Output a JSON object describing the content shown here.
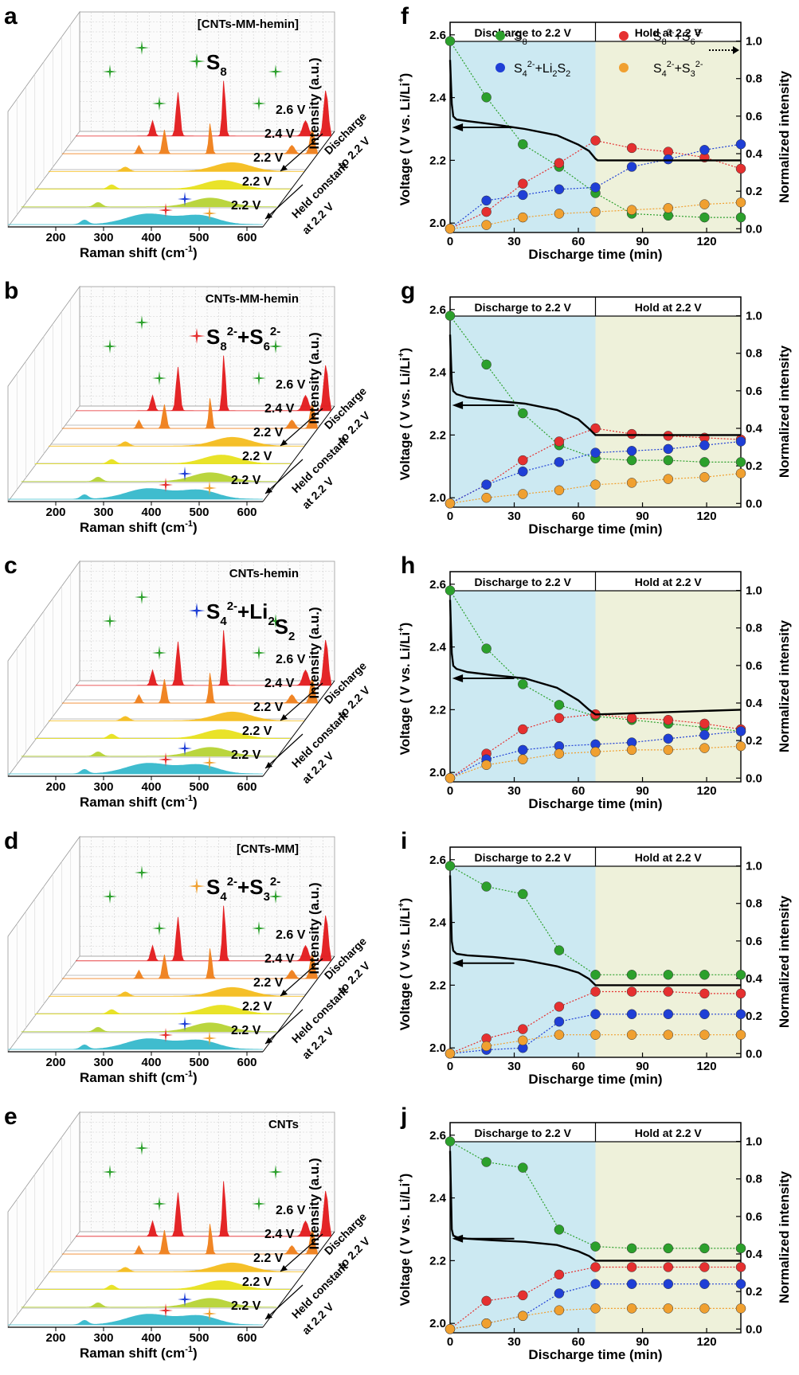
{
  "colors": {
    "green": "#2ca02c",
    "red": "#e53030",
    "blue": "#1f3fd6",
    "orange": "#f0a030",
    "discharge_bg": "#cce9f2",
    "hold_bg": "#eef1da",
    "spectra": [
      "#e31a1c",
      "#f07f1a",
      "#f5bd1e",
      "#e8e21e",
      "#b7d334",
      "#35b9cc"
    ]
  },
  "raman": {
    "x_ticks": [
      "200",
      "300",
      "400",
      "500",
      "600"
    ],
    "x_label": "Raman shift (cm",
    "x_label_sup": "-1",
    "x_label_end": ")",
    "y_label": "Intensity (a.u.)",
    "discharge_label": "Discharge",
    "discharge_label2": "to 2.2 V",
    "hold_label": "Held constant",
    "hold_label2": "at 2.2 V",
    "voltage_labels": [
      "2.6 V",
      "2.4 V",
      "2.2 V",
      "2.2 V",
      "2.2 V"
    ]
  },
  "panels_left": [
    {
      "letter": "a",
      "sample": "[CNTs-MM-hemin]",
      "species_pre": "S",
      "species_sub": "8",
      "species_mid": "",
      "species_sub2": "",
      "species_sup": "",
      "species_sup2": "",
      "species_star": "green"
    },
    {
      "letter": "b",
      "sample": "CNTs-MM-hemin",
      "species_pre": "S",
      "species_sub": "8",
      "species_sup": "2-",
      "species_mid": "+S",
      "species_sub2": "6",
      "species_sup2": "2-",
      "species_star": "red"
    },
    {
      "letter": "c",
      "sample": "CNTs-hemin",
      "species_pre": "S",
      "species_sub": "4",
      "species_sup": "2-",
      "species_mid": "+Li",
      "species_sub2": "2",
      "species_sup2": "",
      "species_tail": "S",
      "species_sub3": "2",
      "species_star": "blue"
    },
    {
      "letter": "d",
      "sample": "[CNTs-MM]",
      "species_pre": "S",
      "species_sub": "4",
      "species_sup": "2-",
      "species_mid": "+S",
      "species_sub2": "3",
      "species_sup2": "2-",
      "species_star": "orange"
    },
    {
      "letter": "e",
      "sample": "CNTs",
      "species_pre": "",
      "species_sub": "",
      "species_sup": "",
      "species_mid": "",
      "species_sub2": "",
      "species_sup2": "",
      "species_star": ""
    }
  ],
  "time_axis": {
    "x_label": "Discharge time (min)",
    "x_ticks": [
      "0",
      "30",
      "60",
      "90",
      "120"
    ],
    "y_left_label": "Voltage ( V vs. Li/Li",
    "y_left_sup": "+",
    "y_left_end": ")",
    "y_right_label": "Normalized intensity",
    "y_left_ticks": [
      "2.0",
      "2.2",
      "2.4",
      "2.6"
    ],
    "y_right_ticks": [
      "0.0",
      "0.2",
      "0.4",
      "0.6",
      "0.8",
      "1.0"
    ],
    "region_left": "Discharge to 2.2 V",
    "region_right": "Hold  at 2.2 V"
  },
  "legend": {
    "s8": "S",
    "s8_sub": "8",
    "s8s6_a": "S",
    "s8s6_sub1": "8",
    "s8s6_sup1": "2-",
    "s8s6_b": "+S",
    "s8s6_sub2": "6",
    "s8s6_sup2": "2-",
    "s4li_a": "S",
    "s4li_sub1": "4",
    "s4li_sup1": "2-",
    "s4li_b": "+Li",
    "s4li_sub2": "2",
    "s4li_c": "S",
    "s4li_sub3": "2",
    "s4s3_a": "S",
    "s4s3_sub1": "4",
    "s4s3_sup1": "2-",
    "s4s3_b": "+S",
    "s4s3_sub2": "3",
    "s4s3_sup2": "2-"
  },
  "chart_data": [
    {
      "panel": "f",
      "type": "line",
      "x": [
        0,
        17,
        34,
        51,
        68,
        85,
        102,
        119,
        136
      ],
      "series": [
        {
          "name": "S8",
          "color": "green",
          "values": [
            1.0,
            0.7,
            0.45,
            0.33,
            0.19,
            0.08,
            0.07,
            0.06,
            0.06
          ]
        },
        {
          "name": "S8 2- + S6 2-",
          "color": "red",
          "values": [
            0.0,
            0.09,
            0.24,
            0.35,
            0.47,
            0.43,
            0.41,
            0.38,
            0.32
          ]
        },
        {
          "name": "S4 2- + Li2S2",
          "color": "blue",
          "values": [
            0.0,
            0.15,
            0.18,
            0.21,
            0.22,
            0.33,
            0.37,
            0.42,
            0.45
          ]
        },
        {
          "name": "S4 2- + S3 2-",
          "color": "orange",
          "values": [
            0.0,
            0.02,
            0.06,
            0.08,
            0.09,
            0.1,
            0.11,
            0.13,
            0.14
          ]
        }
      ],
      "voltage": {
        "x": [
          0,
          0.8,
          1.5,
          3,
          8,
          20,
          35,
          50,
          60,
          65,
          68,
          69,
          136
        ],
        "v": [
          2.52,
          2.38,
          2.34,
          2.33,
          2.325,
          2.315,
          2.3,
          2.28,
          2.25,
          2.23,
          2.205,
          2.2,
          2.2
        ]
      },
      "arrow_at": 2.305
    },
    {
      "panel": "g",
      "type": "line",
      "x": [
        0,
        17,
        34,
        51,
        68,
        85,
        102,
        119,
        136
      ],
      "series": [
        {
          "name": "S8",
          "color": "green",
          "values": [
            1.0,
            0.74,
            0.48,
            0.31,
            0.24,
            0.23,
            0.23,
            0.22,
            0.22
          ]
        },
        {
          "name": "S8 2- + S6 2-",
          "color": "red",
          "values": [
            0.0,
            0.1,
            0.23,
            0.33,
            0.4,
            0.37,
            0.36,
            0.35,
            0.34
          ]
        },
        {
          "name": "S4 2- + Li2S2",
          "color": "blue",
          "values": [
            0.0,
            0.1,
            0.17,
            0.22,
            0.27,
            0.28,
            0.29,
            0.31,
            0.33
          ]
        },
        {
          "name": "S4 2- + S3 2-",
          "color": "orange",
          "values": [
            0.0,
            0.03,
            0.05,
            0.07,
            0.1,
            0.11,
            0.13,
            0.14,
            0.16
          ]
        }
      ],
      "voltage": {
        "x": [
          0,
          0.8,
          1.5,
          3,
          8,
          20,
          35,
          50,
          60,
          65,
          68,
          69,
          136
        ],
        "v": [
          2.52,
          2.37,
          2.34,
          2.33,
          2.32,
          2.31,
          2.3,
          2.28,
          2.25,
          2.22,
          2.2,
          2.2,
          2.2
        ]
      },
      "arrow_at": 2.295
    },
    {
      "panel": "h",
      "type": "line",
      "x": [
        0,
        17,
        34,
        51,
        68,
        85,
        102,
        119,
        136
      ],
      "series": [
        {
          "name": "S8",
          "color": "green",
          "values": [
            1.0,
            0.69,
            0.5,
            0.39,
            0.33,
            0.31,
            0.29,
            0.27,
            0.25
          ]
        },
        {
          "name": "S8 2- + S6 2-",
          "color": "red",
          "values": [
            0.0,
            0.13,
            0.26,
            0.32,
            0.34,
            0.32,
            0.31,
            0.29,
            0.26
          ]
        },
        {
          "name": "S4 2- + Li2S2",
          "color": "blue",
          "values": [
            0.0,
            0.1,
            0.15,
            0.17,
            0.18,
            0.19,
            0.21,
            0.23,
            0.25
          ]
        },
        {
          "name": "S4 2- + S3 2-",
          "color": "orange",
          "values": [
            0.0,
            0.07,
            0.1,
            0.13,
            0.14,
            0.15,
            0.15,
            0.16,
            0.17
          ]
        }
      ],
      "voltage": {
        "x": [
          0,
          0.8,
          1.5,
          3,
          8,
          20,
          35,
          50,
          60,
          65,
          68,
          69,
          136
        ],
        "v": [
          2.55,
          2.38,
          2.34,
          2.33,
          2.32,
          2.31,
          2.3,
          2.27,
          2.23,
          2.2,
          2.185,
          2.185,
          2.2
        ]
      },
      "arrow_at": 2.3
    },
    {
      "panel": "i",
      "type": "line",
      "x": [
        0,
        17,
        34,
        51,
        68,
        85,
        102,
        119,
        136
      ],
      "series": [
        {
          "name": "S8",
          "color": "green",
          "values": [
            1.0,
            0.89,
            0.85,
            0.55,
            0.42,
            0.42,
            0.42,
            0.42,
            0.42
          ]
        },
        {
          "name": "S8 2- + S6 2-",
          "color": "red",
          "values": [
            0.0,
            0.08,
            0.13,
            0.25,
            0.33,
            0.33,
            0.33,
            0.32,
            0.32
          ]
        },
        {
          "name": "S4 2- + Li2S2",
          "color": "blue",
          "values": [
            0.0,
            0.02,
            0.03,
            0.17,
            0.21,
            0.21,
            0.21,
            0.21,
            0.21
          ]
        },
        {
          "name": "S4 2- + S3 2-",
          "color": "orange",
          "values": [
            0.0,
            0.04,
            0.07,
            0.1,
            0.1,
            0.1,
            0.1,
            0.1,
            0.1
          ]
        }
      ],
      "voltage": {
        "x": [
          0,
          0.8,
          1.5,
          3,
          8,
          20,
          35,
          50,
          60,
          65,
          68,
          69,
          136
        ],
        "v": [
          2.55,
          2.34,
          2.31,
          2.3,
          2.295,
          2.29,
          2.28,
          2.26,
          2.24,
          2.22,
          2.2,
          2.2,
          2.2
        ]
      },
      "arrow_at": 2.27
    },
    {
      "panel": "j",
      "type": "line",
      "x": [
        0,
        17,
        34,
        51,
        68,
        85,
        102,
        119,
        136
      ],
      "series": [
        {
          "name": "S8",
          "color": "green",
          "values": [
            1.0,
            0.89,
            0.86,
            0.53,
            0.44,
            0.43,
            0.43,
            0.43,
            0.43
          ]
        },
        {
          "name": "S8 2- + S6 2-",
          "color": "red",
          "values": [
            0.0,
            0.15,
            0.18,
            0.29,
            0.33,
            0.33,
            0.33,
            0.33,
            0.33
          ]
        },
        {
          "name": "S4 2- + Li2S2",
          "color": "blue",
          "values": [
            0.0,
            0.03,
            0.07,
            0.19,
            0.24,
            0.24,
            0.24,
            0.24,
            0.24
          ]
        },
        {
          "name": "S4 2- + S3 2-",
          "color": "orange",
          "values": [
            0.0,
            0.03,
            0.07,
            0.1,
            0.11,
            0.11,
            0.11,
            0.11,
            0.11
          ]
        }
      ],
      "voltage": {
        "x": [
          0,
          0.8,
          1.5,
          3,
          8,
          20,
          35,
          50,
          60,
          65,
          68,
          69,
          136
        ],
        "v": [
          2.55,
          2.3,
          2.28,
          2.275,
          2.27,
          2.265,
          2.26,
          2.25,
          2.23,
          2.215,
          2.2,
          2.2,
          2.2
        ]
      },
      "arrow_at": 2.27
    }
  ]
}
